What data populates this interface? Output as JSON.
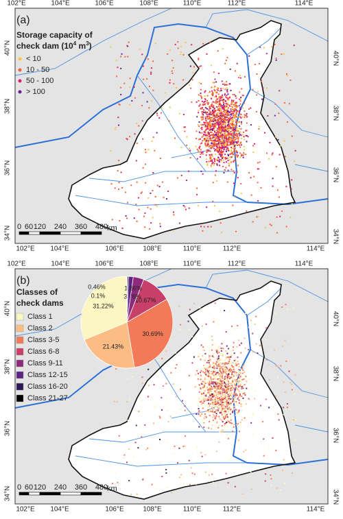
{
  "longitude_labels": [
    "102°E",
    "104°E",
    "106°E",
    "108°E",
    "110°E",
    "112°E",
    "114°E"
  ],
  "latitude_labels": [
    "34°N",
    "36°N",
    "38°N",
    "40°N"
  ],
  "scale_bar": {
    "labels": [
      0,
      60,
      120,
      240,
      360,
      480
    ],
    "unit": "km"
  },
  "panel_a": {
    "label": "(a)",
    "legend_title": [
      "Storage capacity of",
      "check dam (10",
      "4",
      " m",
      "3",
      ")"
    ],
    "legend_items": [
      {
        "label": "< 10",
        "color": "#f7c64a"
      },
      {
        "label": "10 - 50",
        "color": "#f2643a"
      },
      {
        "label": "50 - 100",
        "color": "#d81f73"
      },
      {
        "label": "> 100",
        "color": "#6a1b9a"
      }
    ]
  },
  "panel_b": {
    "label": "(b)",
    "legend_title": [
      "Classes of",
      "check dams"
    ],
    "classes": [
      {
        "label": "Class 1",
        "color": "#fcf6c2"
      },
      {
        "label": "Class 2",
        "color": "#fbbd84"
      },
      {
        "label": "Class 3-5",
        "color": "#f27a58"
      },
      {
        "label": "Class 6-8",
        "color": "#c8406a"
      },
      {
        "label": "Class 9-11",
        "color": "#8e2a7b"
      },
      {
        "label": "Class 12-15",
        "color": "#5a2480"
      },
      {
        "label": "Class 16-20",
        "color": "#2b1a55"
      },
      {
        "label": "Class 21-27",
        "color": "#000000"
      }
    ],
    "pie": {
      "values": [
        31.22,
        21.43,
        30.69,
        10.67,
        3.76,
        1.66,
        0.46,
        0.1
      ],
      "value_labels": [
        "31.22%",
        "21.43%",
        "30.69%",
        "10.67%",
        "3.76%",
        "1.66%",
        "0.46%",
        "0.1%"
      ]
    }
  }
}
